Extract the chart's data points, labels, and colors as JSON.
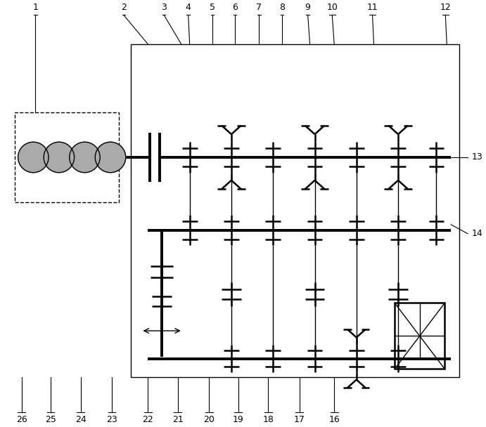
{
  "fig_width": 6.91,
  "fig_height": 6.08,
  "dpi": 100,
  "bg_color": "#ffffff",
  "line_color": "#000000",
  "top_labels": [
    "1",
    "2",
    "3",
    "4",
    "5",
    "6",
    "7",
    "8",
    "9",
    "10",
    "11",
    "12"
  ],
  "bottom_labels": [
    "26",
    "25",
    "24",
    "23",
    "22",
    "21",
    "20",
    "19",
    "18",
    "17",
    "16"
  ],
  "right_labels": [
    "13",
    "14"
  ]
}
